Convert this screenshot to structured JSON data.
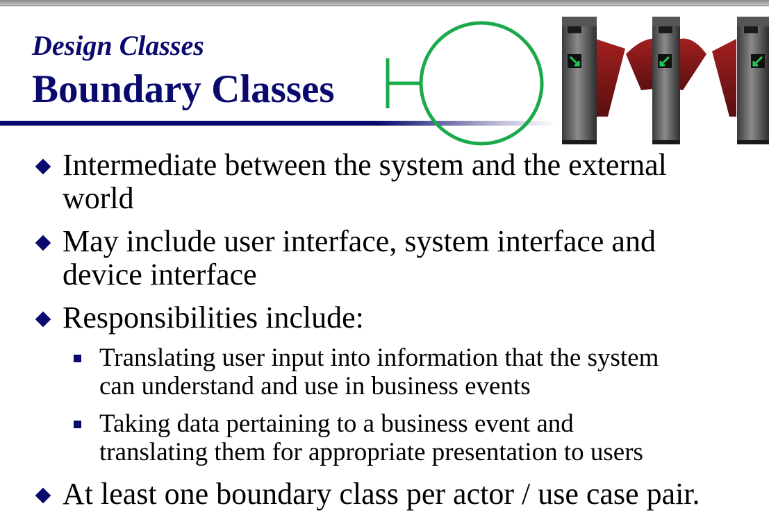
{
  "slide": {
    "subtitle": "Design Classes",
    "title": "Boundary Classes"
  },
  "icons": {
    "boundary_symbol": "boundary-class-icon",
    "turnstiles": "turnstile-gates-image"
  },
  "colors": {
    "title": "#0a0a6e",
    "boundary_symbol": "#1aaa4a",
    "gate_flap": "#8b1a1a"
  },
  "bullets": [
    {
      "lines": [
        "Intermediate between the system and the external",
        "world"
      ]
    },
    {
      "lines": [
        "May include user interface, system interface and",
        "device interface"
      ]
    },
    {
      "lines": [
        "Responsibilities include:"
      ]
    },
    {
      "lines": [
        "At least one boundary class per actor / use case pair."
      ]
    }
  ],
  "sub_bullets": [
    {
      "lines": [
        "Translating user input into information that the system",
        "can understand and use in business events"
      ]
    },
    {
      "lines": [
        "Taking data pertaining to a business event and",
        "translating them for appropriate presentation to users"
      ]
    }
  ]
}
